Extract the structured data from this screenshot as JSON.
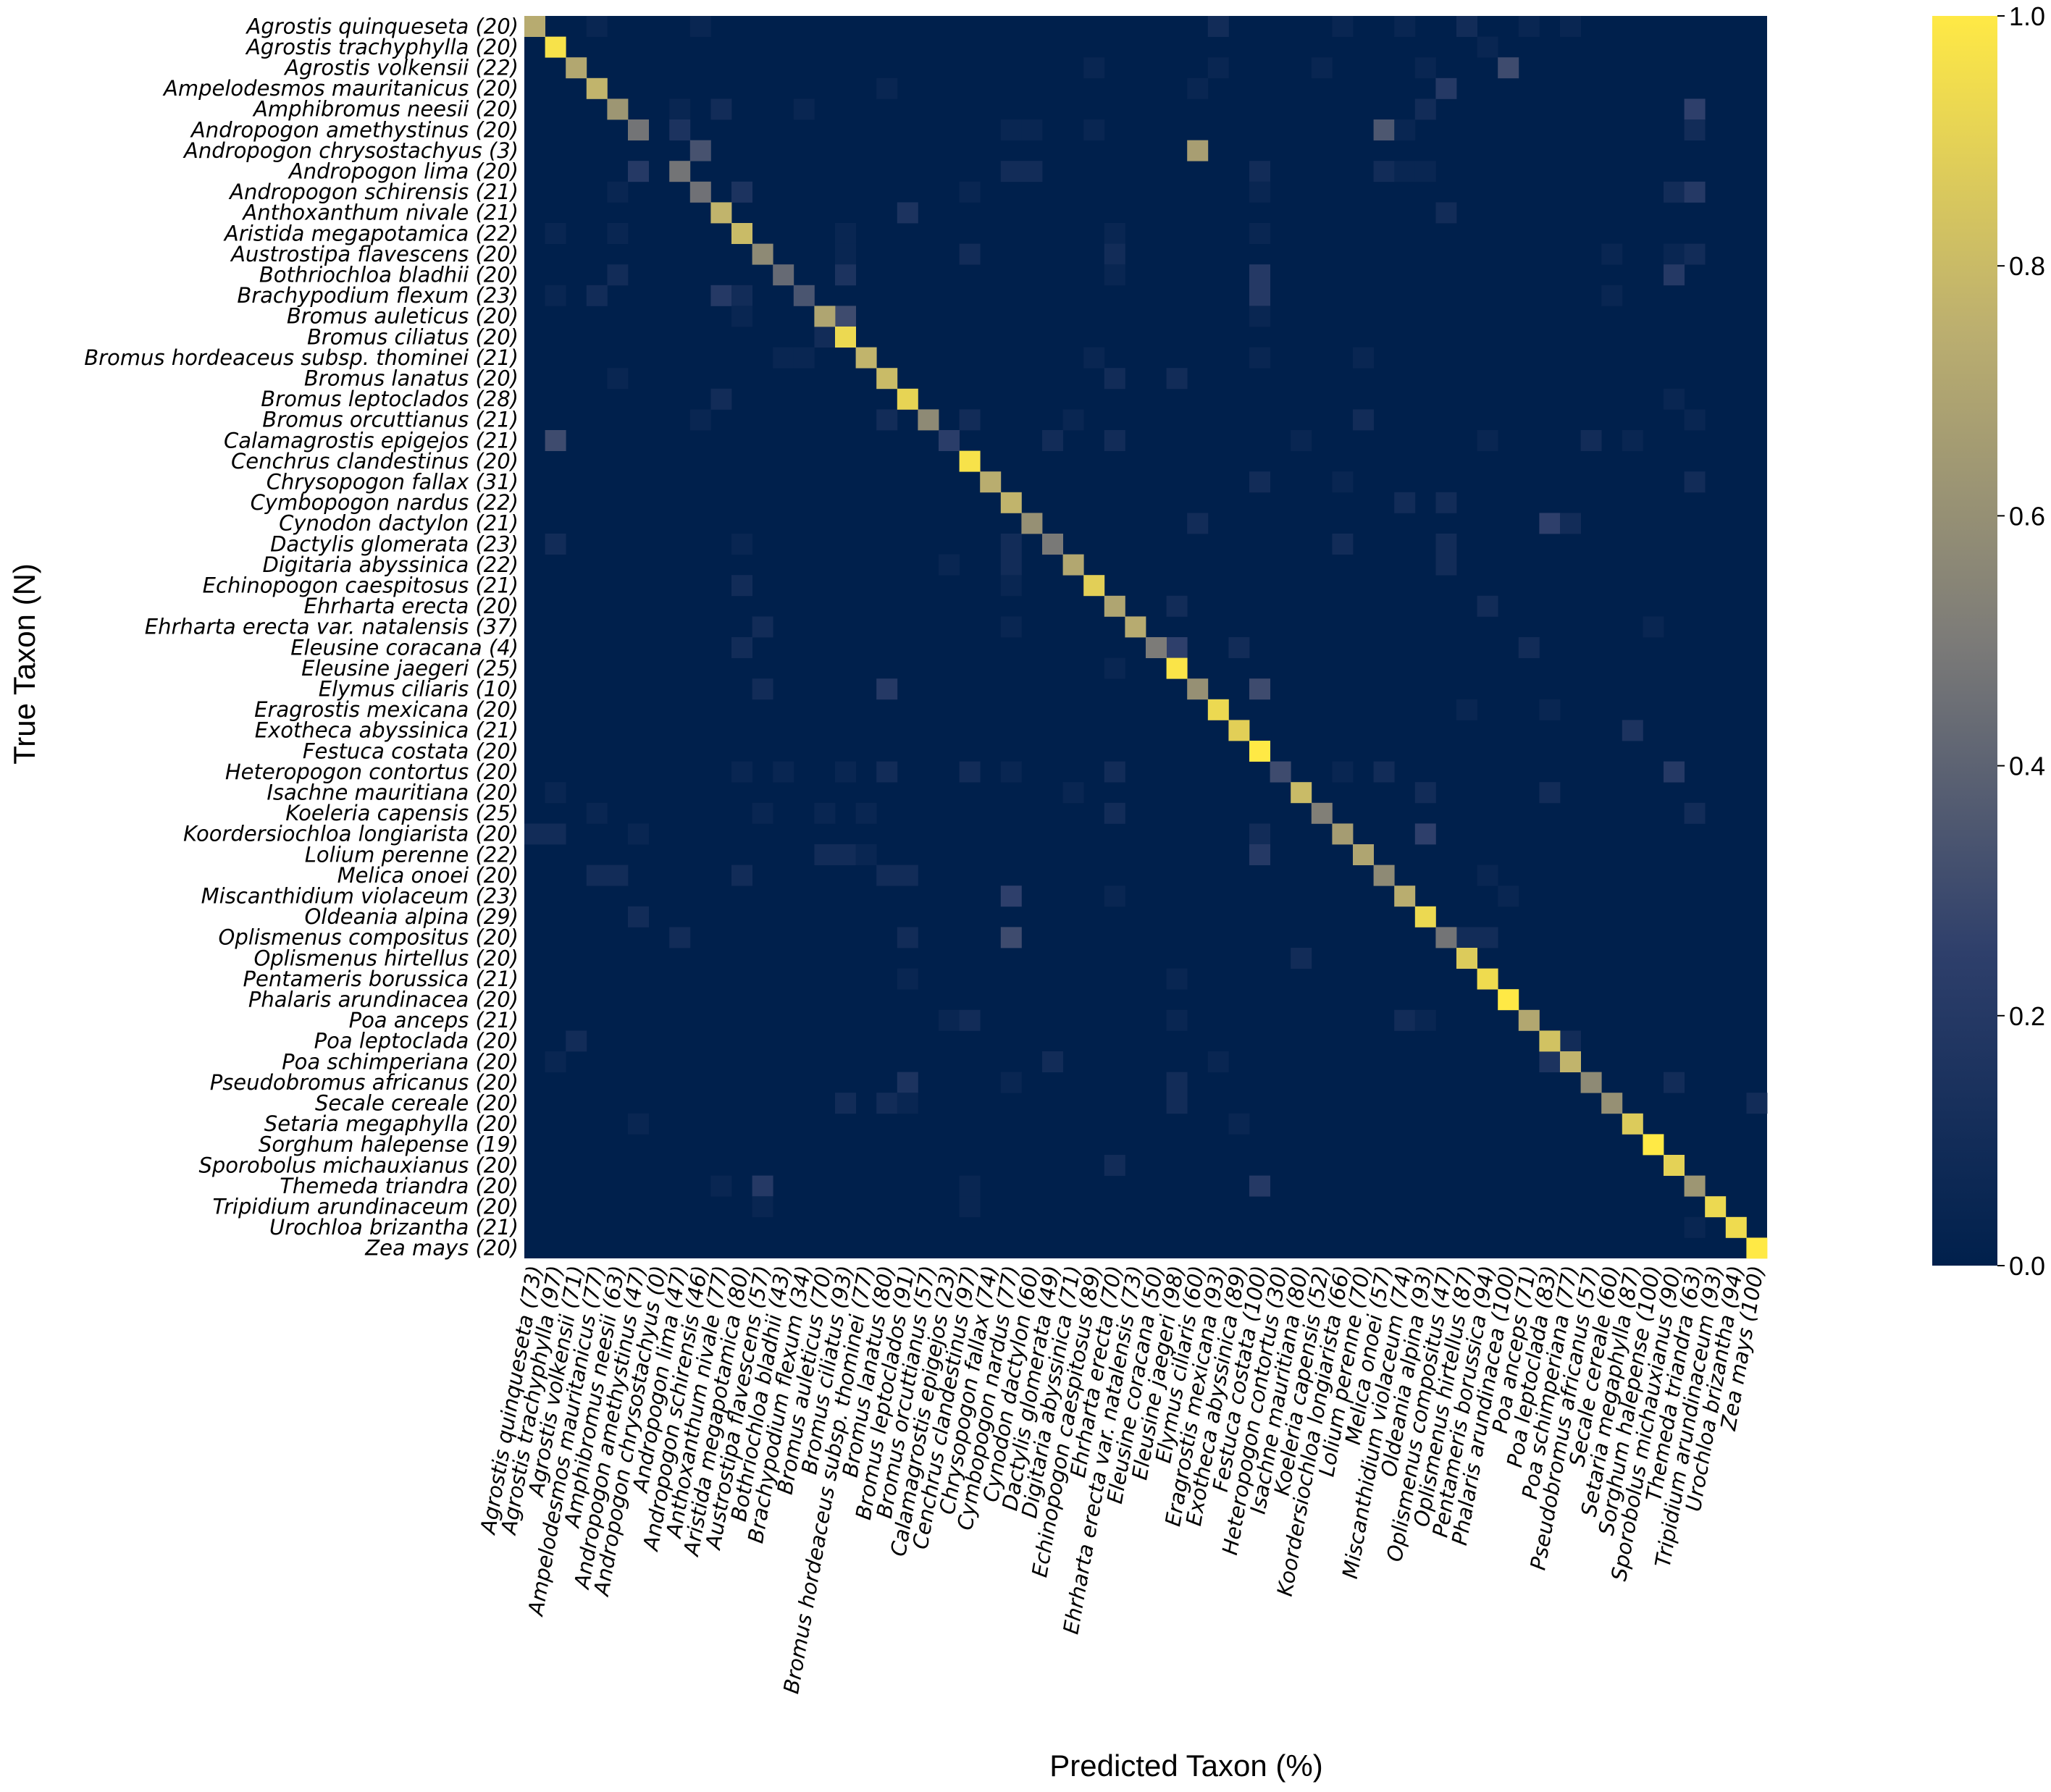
{
  "chart_data": {
    "type": "heatmap",
    "xlabel": "Predicted Taxon (%)",
    "ylabel": "True Taxon (N)",
    "row_labels": [
      "Agrostis quinqueseta (20)",
      "Agrostis trachyphylla (20)",
      "Agrostis volkensii (22)",
      "Ampelodesmos mauritanicus (20)",
      "Amphibromus neesii (20)",
      "Andropogon amethystinus (20)",
      "Andropogon chrysostachyus (3)",
      "Andropogon lima (20)",
      "Andropogon schirensis (21)",
      "Anthoxanthum nivale (21)",
      "Aristida megapotamica (22)",
      "Austrostipa flavescens (20)",
      "Bothriochloa bladhii (20)",
      "Brachypodium flexum (23)",
      "Bromus auleticus (20)",
      "Bromus ciliatus (20)",
      "Bromus hordeaceus subsp. thominei (21)",
      "Bromus lanatus (20)",
      "Bromus leptoclados (28)",
      "Bromus orcuttianus (21)",
      "Calamagrostis epigejos (21)",
      "Cenchrus clandestinus (20)",
      "Chrysopogon fallax (31)",
      "Cymbopogon nardus (22)",
      "Cynodon dactylon (21)",
      "Dactylis glomerata (23)",
      "Digitaria abyssinica (22)",
      "Echinopogon caespitosus (21)",
      "Ehrharta erecta (20)",
      "Ehrharta erecta var. natalensis (37)",
      "Eleusine coracana (4)",
      "Eleusine jaegeri (25)",
      "Elymus ciliaris (10)",
      "Eragrostis mexicana (20)",
      "Exotheca abyssinica (21)",
      "Festuca costata (20)",
      "Heteropogon contortus (20)",
      "Isachne mauritiana (20)",
      "Koeleria capensis (25)",
      "Koordersiochloa longiarista (20)",
      "Lolium perenne (22)",
      "Melica onoei (20)",
      "Miscanthidium violaceum (23)",
      "Oldeania alpina (29)",
      "Oplismenus compositus (20)",
      "Oplismenus hirtellus (20)",
      "Pentameris borussica (21)",
      "Phalaris arundinacea (20)",
      "Poa anceps (21)",
      "Poa leptoclada (20)",
      "Poa schimperiana (20)",
      "Pseudobromus africanus (20)",
      "Secale cereale (20)",
      "Setaria megaphylla (20)",
      "Sorghum halepense (19)",
      "Sporobolus michauxianus (20)",
      "Themeda triandra (20)",
      "Tripidium arundinaceum (20)",
      "Urochloa brizantha (21)",
      "Zea mays (20)"
    ],
    "col_labels": [
      "Agrostis quinqueseta (73)",
      "Agrostis trachyphylla (97)",
      "Agrostis volkensii (71)",
      "Ampelodesmos mauritanicus (77)",
      "Amphibromus neesii (63)",
      "Andropogon amethystinus (47)",
      "Andropogon chrysostachyus (0)",
      "Andropogon lima (47)",
      "Andropogon schirensis (46)",
      "Anthoxanthum nivale (77)",
      "Aristida megapotamica (80)",
      "Austrostipa flavescens (57)",
      "Bothriochloa bladhii (43)",
      "Brachypodium flexum (34)",
      "Bromus auleticus (70)",
      "Bromus ciliatus (93)",
      "Bromus hordeaceus subsp. thominei (77)",
      "Bromus lanatus (80)",
      "Bromus leptoclados (91)",
      "Bromus orcuttianus (57)",
      "Calamagrostis epigejos (23)",
      "Cenchrus clandestinus (97)",
      "Chrysopogon fallax (74)",
      "Cymbopogon nardus (77)",
      "Cynodon dactylon (60)",
      "Dactylis glomerata (49)",
      "Digitaria abyssinica (71)",
      "Echinopogon caespitosus (89)",
      "Ehrharta erecta (70)",
      "Ehrharta erecta var. natalensis (73)",
      "Eleusine coracana (50)",
      "Eleusine jaegeri (98)",
      "Elymus ciliaris (60)",
      "Eragrostis mexicana (93)",
      "Exotheca abyssinica (89)",
      "Festuca costata (100)",
      "Heteropogon contortus (30)",
      "Isachne mauritiana (80)",
      "Koeleria capensis (52)",
      "Koordersiochloa longiarista (66)",
      "Lolium perenne (70)",
      "Melica onoei (57)",
      "Miscanthidium violaceum (74)",
      "Oldeania alpina (93)",
      "Oplismenus compositus (47)",
      "Oplismenus hirtellus (87)",
      "Pentameris borussica (94)",
      "Phalaris arundinacea (100)",
      "Poa anceps (71)",
      "Poa leptoclada (83)",
      "Poa schimperiana (77)",
      "Pseudobromus africanus (57)",
      "Secale cereale (60)",
      "Setaria megaphylla (87)",
      "Sorghum halepense (100)",
      "Sporobolus michauxianus (90)",
      "Themeda triandra (63)",
      "Tripidium arundinaceum (93)",
      "Urochloa brizantha (94)",
      "Zea mays (100)"
    ],
    "diagonal": [
      0.73,
      0.97,
      0.71,
      0.77,
      0.63,
      0.47,
      0.0,
      0.47,
      0.46,
      0.77,
      0.8,
      0.57,
      0.43,
      0.34,
      0.7,
      0.93,
      0.77,
      0.8,
      0.91,
      0.57,
      0.23,
      0.97,
      0.74,
      0.77,
      0.6,
      0.49,
      0.71,
      0.89,
      0.7,
      0.73,
      0.5,
      0.98,
      0.6,
      0.93,
      0.89,
      1.0,
      0.3,
      0.8,
      0.52,
      0.66,
      0.7,
      0.57,
      0.74,
      0.93,
      0.47,
      0.87,
      0.94,
      1.0,
      0.71,
      0.83,
      0.77,
      0.57,
      0.6,
      0.87,
      1.0,
      0.9,
      0.63,
      0.93,
      0.94,
      1.0
    ],
    "off_diagonal": [
      [
        0,
        3,
        0.05
      ],
      [
        0,
        8,
        0.05
      ],
      [
        0,
        33,
        0.1
      ],
      [
        0,
        39,
        0.05
      ],
      [
        0,
        42,
        0.05
      ],
      [
        0,
        45,
        0.1
      ],
      [
        0,
        48,
        0.05
      ],
      [
        0,
        50,
        0.05
      ],
      [
        1,
        46,
        0.05
      ],
      [
        2,
        27,
        0.05
      ],
      [
        2,
        33,
        0.05
      ],
      [
        2,
        38,
        0.05
      ],
      [
        2,
        43,
        0.05
      ],
      [
        2,
        47,
        0.3
      ],
      [
        3,
        17,
        0.05
      ],
      [
        3,
        32,
        0.05
      ],
      [
        3,
        44,
        0.2
      ],
      [
        4,
        7,
        0.05
      ],
      [
        4,
        9,
        0.1
      ],
      [
        4,
        13,
        0.05
      ],
      [
        4,
        43,
        0.1
      ],
      [
        4,
        56,
        0.25
      ],
      [
        5,
        7,
        0.15
      ],
      [
        5,
        23,
        0.05
      ],
      [
        5,
        24,
        0.05
      ],
      [
        5,
        27,
        0.05
      ],
      [
        5,
        41,
        0.35
      ],
      [
        5,
        42,
        0.05
      ],
      [
        5,
        56,
        0.1
      ],
      [
        6,
        8,
        0.33
      ],
      [
        6,
        32,
        0.67
      ],
      [
        7,
        5,
        0.2
      ],
      [
        7,
        23,
        0.1
      ],
      [
        7,
        24,
        0.1
      ],
      [
        7,
        35,
        0.1
      ],
      [
        7,
        41,
        0.1
      ],
      [
        7,
        42,
        0.05
      ],
      [
        7,
        43,
        0.05
      ],
      [
        8,
        4,
        0.05
      ],
      [
        8,
        10,
        0.15
      ],
      [
        8,
        21,
        0.05
      ],
      [
        8,
        35,
        0.05
      ],
      [
        8,
        55,
        0.1
      ],
      [
        8,
        56,
        0.2
      ],
      [
        9,
        18,
        0.15
      ],
      [
        9,
        44,
        0.1
      ],
      [
        10,
        1,
        0.05
      ],
      [
        10,
        4,
        0.05
      ],
      [
        10,
        15,
        0.05
      ],
      [
        10,
        28,
        0.05
      ],
      [
        10,
        35,
        0.05
      ],
      [
        11,
        15,
        0.05
      ],
      [
        11,
        21,
        0.1
      ],
      [
        11,
        28,
        0.1
      ],
      [
        11,
        52,
        0.05
      ],
      [
        11,
        55,
        0.05
      ],
      [
        11,
        56,
        0.1
      ],
      [
        12,
        4,
        0.1
      ],
      [
        12,
        15,
        0.15
      ],
      [
        12,
        28,
        0.05
      ],
      [
        12,
        35,
        0.2
      ],
      [
        12,
        55,
        0.2
      ],
      [
        13,
        1,
        0.05
      ],
      [
        13,
        3,
        0.1
      ],
      [
        13,
        9,
        0.2
      ],
      [
        13,
        10,
        0.1
      ],
      [
        13,
        35,
        0.2
      ],
      [
        13,
        52,
        0.05
      ],
      [
        14,
        10,
        0.05
      ],
      [
        14,
        15,
        0.3
      ],
      [
        14,
        35,
        0.05
      ],
      [
        15,
        14,
        0.1
      ],
      [
        16,
        12,
        0.05
      ],
      [
        16,
        13,
        0.05
      ],
      [
        16,
        27,
        0.05
      ],
      [
        16,
        35,
        0.05
      ],
      [
        16,
        40,
        0.05
      ],
      [
        17,
        4,
        0.05
      ],
      [
        17,
        28,
        0.1
      ],
      [
        17,
        31,
        0.1
      ],
      [
        18,
        9,
        0.1
      ],
      [
        18,
        55,
        0.05
      ],
      [
        19,
        8,
        0.05
      ],
      [
        19,
        17,
        0.1
      ],
      [
        19,
        21,
        0.1
      ],
      [
        19,
        26,
        0.05
      ],
      [
        19,
        40,
        0.1
      ],
      [
        19,
        56,
        0.05
      ],
      [
        20,
        1,
        0.3
      ],
      [
        20,
        25,
        0.1
      ],
      [
        20,
        28,
        0.1
      ],
      [
        20,
        37,
        0.05
      ],
      [
        20,
        46,
        0.05
      ],
      [
        20,
        51,
        0.1
      ],
      [
        20,
        53,
        0.05
      ],
      [
        22,
        35,
        0.1
      ],
      [
        22,
        39,
        0.05
      ],
      [
        22,
        56,
        0.1
      ],
      [
        23,
        42,
        0.1
      ],
      [
        23,
        44,
        0.1
      ],
      [
        24,
        32,
        0.1
      ],
      [
        24,
        49,
        0.25
      ],
      [
        24,
        50,
        0.1
      ],
      [
        25,
        1,
        0.1
      ],
      [
        25,
        10,
        0.05
      ],
      [
        25,
        23,
        0.1
      ],
      [
        25,
        39,
        0.1
      ],
      [
        25,
        44,
        0.1
      ],
      [
        26,
        20,
        0.05
      ],
      [
        26,
        23,
        0.1
      ],
      [
        26,
        44,
        0.1
      ],
      [
        27,
        10,
        0.1
      ],
      [
        27,
        23,
        0.05
      ],
      [
        28,
        31,
        0.1
      ],
      [
        28,
        46,
        0.1
      ],
      [
        29,
        11,
        0.1
      ],
      [
        29,
        23,
        0.05
      ],
      [
        29,
        54,
        0.05
      ],
      [
        30,
        10,
        0.1
      ],
      [
        30,
        31,
        0.25
      ],
      [
        30,
        34,
        0.1
      ],
      [
        30,
        48,
        0.1
      ],
      [
        31,
        28,
        0.05
      ],
      [
        32,
        11,
        0.1
      ],
      [
        32,
        17,
        0.2
      ],
      [
        32,
        35,
        0.3
      ],
      [
        33,
        45,
        0.05
      ],
      [
        33,
        49,
        0.05
      ],
      [
        34,
        53,
        0.15
      ],
      [
        36,
        10,
        0.05
      ],
      [
        36,
        12,
        0.05
      ],
      [
        36,
        15,
        0.05
      ],
      [
        36,
        17,
        0.1
      ],
      [
        36,
        21,
        0.1
      ],
      [
        36,
        23,
        0.05
      ],
      [
        36,
        28,
        0.1
      ],
      [
        36,
        39,
        0.05
      ],
      [
        36,
        41,
        0.1
      ],
      [
        36,
        55,
        0.2
      ],
      [
        37,
        1,
        0.05
      ],
      [
        37,
        26,
        0.05
      ],
      [
        37,
        43,
        0.1
      ],
      [
        37,
        49,
        0.1
      ],
      [
        38,
        3,
        0.05
      ],
      [
        38,
        11,
        0.05
      ],
      [
        38,
        14,
        0.05
      ],
      [
        38,
        16,
        0.05
      ],
      [
        38,
        28,
        0.1
      ],
      [
        38,
        56,
        0.1
      ],
      [
        39,
        0,
        0.1
      ],
      [
        39,
        1,
        0.1
      ],
      [
        39,
        5,
        0.05
      ],
      [
        39,
        35,
        0.1
      ],
      [
        39,
        43,
        0.25
      ],
      [
        40,
        14,
        0.1
      ],
      [
        40,
        15,
        0.1
      ],
      [
        40,
        16,
        0.05
      ],
      [
        40,
        35,
        0.2
      ],
      [
        41,
        3,
        0.1
      ],
      [
        41,
        4,
        0.1
      ],
      [
        41,
        10,
        0.1
      ],
      [
        41,
        17,
        0.1
      ],
      [
        41,
        18,
        0.1
      ],
      [
        41,
        46,
        0.05
      ],
      [
        42,
        23,
        0.25
      ],
      [
        42,
        28,
        0.05
      ],
      [
        42,
        47,
        0.05
      ],
      [
        43,
        5,
        0.1
      ],
      [
        44,
        7,
        0.1
      ],
      [
        44,
        18,
        0.1
      ],
      [
        44,
        23,
        0.3
      ],
      [
        44,
        45,
        0.1
      ],
      [
        44,
        46,
        0.1
      ],
      [
        45,
        37,
        0.1
      ],
      [
        46,
        18,
        0.05
      ],
      [
        46,
        31,
        0.05
      ],
      [
        48,
        20,
        0.05
      ],
      [
        48,
        21,
        0.1
      ],
      [
        48,
        31,
        0.05
      ],
      [
        48,
        42,
        0.1
      ],
      [
        48,
        43,
        0.05
      ],
      [
        49,
        2,
        0.1
      ],
      [
        49,
        50,
        0.1
      ],
      [
        50,
        1,
        0.05
      ],
      [
        50,
        25,
        0.1
      ],
      [
        50,
        33,
        0.05
      ],
      [
        50,
        49,
        0.15
      ],
      [
        51,
        18,
        0.15
      ],
      [
        51,
        23,
        0.05
      ],
      [
        51,
        31,
        0.1
      ],
      [
        51,
        55,
        0.1
      ],
      [
        52,
        15,
        0.1
      ],
      [
        52,
        17,
        0.1
      ],
      [
        52,
        18,
        0.05
      ],
      [
        52,
        31,
        0.1
      ],
      [
        52,
        59,
        0.1
      ],
      [
        53,
        5,
        0.05
      ],
      [
        53,
        34,
        0.05
      ],
      [
        55,
        28,
        0.1
      ],
      [
        56,
        9,
        0.05
      ],
      [
        56,
        11,
        0.2
      ],
      [
        56,
        21,
        0.05
      ],
      [
        56,
        35,
        0.2
      ],
      [
        57,
        11,
        0.05
      ],
      [
        57,
        21,
        0.05
      ],
      [
        58,
        56,
        0.05
      ]
    ],
    "colorbar": {
      "min": 0.0,
      "max": 1.0,
      "ticks": [
        "0.0",
        "0.2",
        "0.4",
        "0.6",
        "0.8",
        "1.0"
      ]
    },
    "colors": {
      "low": "#00204c",
      "mid": "#7c7b78",
      "high": "#ffe945"
    }
  }
}
